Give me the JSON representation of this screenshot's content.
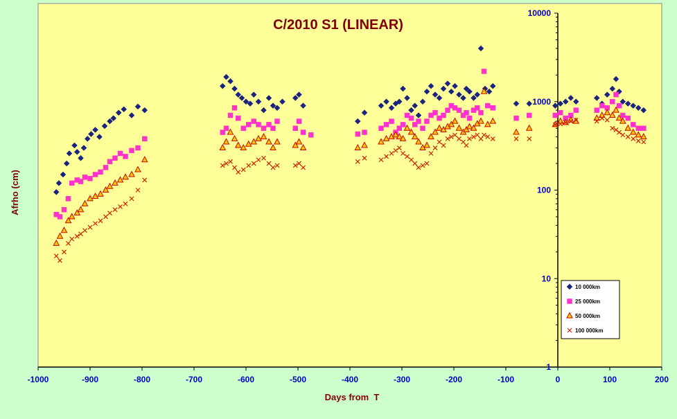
{
  "chart_data": {
    "type": "scatter",
    "title": "C/2010 S1 (LINEAR)",
    "xlabel": "Days from  T",
    "ylabel": "Afrho (cm)",
    "xlim": [
      -1000,
      200
    ],
    "ylim": [
      1,
      10000
    ],
    "yscale": "log",
    "x_ticks": [
      -1000,
      -900,
      -800,
      -700,
      -600,
      -500,
      -400,
      -300,
      -200,
      -100,
      0,
      100,
      200
    ],
    "y_ticks": [
      1,
      10,
      100,
      1000,
      10000
    ],
    "grid": false,
    "legend_position": "bottom-right",
    "colors": {
      "background": "#ccffcc",
      "plot_area": "#ffff99",
      "title": "#800000",
      "tick_labels": "#0000cc",
      "axis_line": "#000000"
    },
    "series": [
      {
        "name": "10 000km",
        "marker": "diamond",
        "color": "#1a237e",
        "x": [
          -965,
          -960,
          -952,
          -945,
          -940,
          -930,
          -925,
          -918,
          -912,
          -905,
          -898,
          -890,
          -882,
          -872,
          -862,
          -855,
          -845,
          -835,
          -820,
          -808,
          -795,
          -645,
          -638,
          -630,
          -622,
          -615,
          -608,
          -600,
          -592,
          -585,
          -576,
          -566,
          -556,
          -548,
          -540,
          -530,
          -505,
          -498,
          -490,
          -385,
          -372,
          -340,
          -330,
          -320,
          -312,
          -305,
          -298,
          -290,
          -282,
          -275,
          -268,
          -260,
          -252,
          -244,
          -236,
          -228,
          -220,
          -212,
          -205,
          -198,
          -190,
          -182,
          -176,
          -170,
          -162,
          -155,
          -148,
          -140,
          -132,
          -125,
          -80,
          -55,
          -5,
          5,
          15,
          25,
          35,
          75,
          85,
          95,
          105,
          112,
          118,
          125,
          135,
          145,
          155,
          165
        ],
        "y": [
          95,
          120,
          150,
          200,
          260,
          320,
          270,
          230,
          300,
          380,
          430,
          480,
          400,
          530,
          600,
          650,
          750,
          820,
          700,
          880,
          800,
          1500,
          1900,
          1700,
          1400,
          1200,
          1100,
          1000,
          950,
          1200,
          1000,
          800,
          1100,
          900,
          850,
          1000,
          1100,
          1200,
          900,
          600,
          750,
          900,
          1000,
          850,
          950,
          1000,
          1400,
          1100,
          800,
          900,
          700,
          1000,
          1300,
          1500,
          1200,
          1100,
          1400,
          1600,
          1300,
          1500,
          1200,
          1100,
          1400,
          1300,
          1100,
          1200,
          4000,
          1400,
          1300,
          1500,
          950,
          950,
          900,
          950,
          1000,
          1100,
          1000,
          1100,
          950,
          1200,
          1400,
          1800,
          1300,
          1000,
          950,
          900,
          850,
          800
        ]
      },
      {
        "name": "25 000km",
        "marker": "square",
        "color": "#ff33cc",
        "x": [
          -965,
          -958,
          -950,
          -942,
          -935,
          -925,
          -918,
          -910,
          -900,
          -890,
          -880,
          -870,
          -862,
          -852,
          -842,
          -832,
          -820,
          -808,
          -795,
          -645,
          -638,
          -630,
          -622,
          -615,
          -605,
          -595,
          -585,
          -576,
          -566,
          -556,
          -548,
          -540,
          -505,
          -498,
          -490,
          -475,
          -385,
          -372,
          -340,
          -330,
          -320,
          -312,
          -305,
          -298,
          -290,
          -282,
          -275,
          -268,
          -260,
          -252,
          -244,
          -236,
          -228,
          -220,
          -212,
          -205,
          -198,
          -190,
          -182,
          -176,
          -170,
          -162,
          -155,
          -148,
          -142,
          -135,
          -125,
          -80,
          -55,
          -5,
          5,
          15,
          25,
          35,
          75,
          85,
          95,
          105,
          112,
          118,
          125,
          135,
          145,
          155,
          165
        ],
        "y": [
          53,
          50,
          60,
          80,
          120,
          130,
          125,
          140,
          135,
          150,
          160,
          180,
          210,
          230,
          260,
          240,
          280,
          300,
          380,
          450,
          500,
          700,
          850,
          650,
          500,
          550,
          600,
          550,
          500,
          550,
          500,
          600,
          500,
          600,
          450,
          420,
          430,
          450,
          500,
          550,
          600,
          450,
          500,
          550,
          700,
          650,
          550,
          600,
          500,
          600,
          700,
          750,
          650,
          700,
          800,
          900,
          850,
          800,
          700,
          750,
          650,
          800,
          850,
          750,
          2200,
          900,
          850,
          650,
          700,
          700,
          750,
          650,
          700,
          800,
          800,
          900,
          850,
          1000,
          1200,
          900,
          700,
          650,
          550,
          500,
          500
        ]
      },
      {
        "name": "50 000km",
        "marker": "triangle",
        "color": "#cc0000",
        "fill": "#ffcc00",
        "x": [
          -965,
          -958,
          -950,
          -942,
          -935,
          -925,
          -918,
          -910,
          -900,
          -890,
          -880,
          -870,
          -862,
          -852,
          -842,
          -832,
          -820,
          -808,
          -795,
          -645,
          -638,
          -630,
          -622,
          -615,
          -605,
          -595,
          -585,
          -576,
          -566,
          -556,
          -548,
          -540,
          -505,
          -498,
          -490,
          -385,
          -372,
          -340,
          -330,
          -320,
          -312,
          -305,
          -298,
          -290,
          -282,
          -275,
          -268,
          -260,
          -252,
          -244,
          -236,
          -228,
          -220,
          -212,
          -205,
          -198,
          -190,
          -182,
          -176,
          -170,
          -162,
          -155,
          -148,
          -142,
          -135,
          -125,
          -80,
          -55,
          -5,
          5,
          15,
          25,
          35,
          75,
          85,
          95,
          105,
          112,
          118,
          125,
          135,
          145,
          155,
          165
        ],
        "y": [
          25,
          30,
          35,
          45,
          50,
          55,
          60,
          70,
          80,
          85,
          90,
          100,
          110,
          120,
          130,
          140,
          150,
          170,
          220,
          300,
          350,
          450,
          380,
          320,
          300,
          330,
          350,
          380,
          400,
          350,
          300,
          350,
          320,
          350,
          300,
          300,
          320,
          350,
          380,
          400,
          420,
          400,
          380,
          500,
          450,
          400,
          350,
          300,
          320,
          400,
          450,
          500,
          480,
          520,
          550,
          600,
          500,
          450,
          480,
          520,
          500,
          560,
          600,
          1300,
          550,
          600,
          450,
          500,
          550,
          600,
          580,
          620,
          600,
          650,
          700,
          750,
          700,
          800,
          650,
          600,
          500,
          450,
          420,
          400
        ]
      },
      {
        "name": "100 000km",
        "marker": "x",
        "color": "#cc2200",
        "x": [
          -965,
          -958,
          -950,
          -942,
          -935,
          -925,
          -918,
          -910,
          -900,
          -890,
          -880,
          -870,
          -862,
          -852,
          -842,
          -832,
          -820,
          -808,
          -795,
          -645,
          -638,
          -630,
          -622,
          -615,
          -605,
          -595,
          -585,
          -576,
          -566,
          -556,
          -548,
          -540,
          -505,
          -498,
          -490,
          -385,
          -372,
          -340,
          -330,
          -320,
          -312,
          -305,
          -298,
          -290,
          -282,
          -275,
          -268,
          -260,
          -252,
          -244,
          -236,
          -228,
          -220,
          -212,
          -205,
          -198,
          -190,
          -182,
          -176,
          -170,
          -162,
          -155,
          -148,
          -142,
          -135,
          -125,
          -80,
          -55,
          -5,
          5,
          15,
          25,
          35,
          75,
          85,
          95,
          105,
          112,
          118,
          125,
          135,
          145,
          155,
          165
        ],
        "y": [
          18,
          16,
          20,
          25,
          28,
          30,
          32,
          35,
          38,
          42,
          45,
          50,
          55,
          60,
          65,
          70,
          80,
          100,
          130,
          190,
          200,
          210,
          180,
          160,
          170,
          190,
          200,
          220,
          230,
          200,
          180,
          190,
          190,
          200,
          180,
          210,
          230,
          220,
          240,
          260,
          280,
          300,
          260,
          240,
          220,
          200,
          180,
          190,
          200,
          260,
          300,
          350,
          320,
          380,
          400,
          420,
          380,
          350,
          320,
          380,
          400,
          420,
          380,
          420,
          400,
          380,
          380,
          380,
          550,
          560,
          580,
          600,
          620,
          600,
          650,
          620,
          500,
          480,
          450,
          420,
          400,
          380,
          360,
          350
        ]
      }
    ]
  }
}
